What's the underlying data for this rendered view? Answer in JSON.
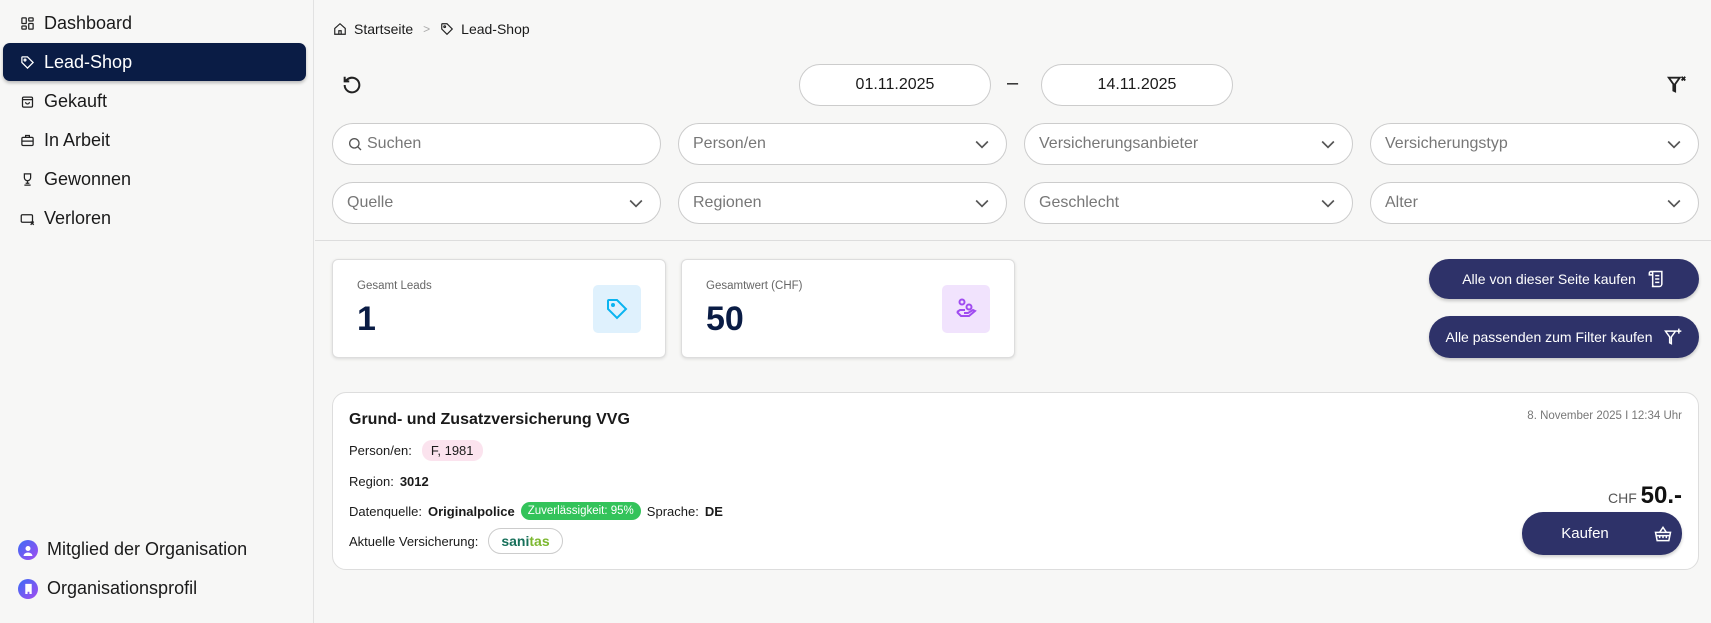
{
  "sidebar": {
    "items": [
      {
        "label": "Dashboard",
        "icon": "dashboard-icon",
        "active": false
      },
      {
        "label": "Lead-Shop",
        "icon": "tag-icon",
        "active": true
      },
      {
        "label": "Gekauft",
        "icon": "shopping-bag-icon",
        "active": false
      },
      {
        "label": "In Arbeit",
        "icon": "briefcase-icon",
        "active": false
      },
      {
        "label": "Gewonnen",
        "icon": "trophy-icon",
        "active": false
      },
      {
        "label": "Verloren",
        "icon": "ticket-x-icon",
        "active": false
      }
    ],
    "bottom": [
      {
        "label": "Mitglied der Organisation",
        "icon": "user-icon"
      },
      {
        "label": "Organisationsprofil",
        "icon": "building-icon"
      }
    ]
  },
  "breadcrumb": {
    "home": "Startseite",
    "current": "Lead-Shop"
  },
  "date_range": {
    "from": "01.11.2025",
    "separator": "–",
    "to": "14.11.2025"
  },
  "filters": {
    "search_placeholder": "Suchen",
    "selects": [
      "Person/en",
      "Versicherungsanbieter",
      "Versicherungstyp",
      "Quelle",
      "Regionen",
      "Geschlecht",
      "Alter"
    ]
  },
  "stats": [
    {
      "label": "Gesamt Leads",
      "value": "1",
      "icon": "tag-icon",
      "color": "#0ab4f0",
      "bg": "#dff1fd"
    },
    {
      "label": "Gesamtwert (CHF)",
      "value": "50",
      "icon": "hand-coins-icon",
      "color": "#a04cf0",
      "bg": "#f1e3fd"
    }
  ],
  "actions": {
    "buy_page": "Alle von dieser Seite kaufen",
    "buy_filter": "Alle passenden zum Filter kaufen"
  },
  "lead": {
    "title": "Grund- und Zusatzversicherung VVG",
    "date": "8. November 2025 I 12:34 Uhr",
    "persons_label": "Person/en:",
    "persons": "F, 1981",
    "region_label": "Region:",
    "region": "3012",
    "source_label": "Datenquelle:",
    "source": "Originalpolice",
    "reliability": "Zuverlässigkeit: 95%",
    "language_label": "Sprache:",
    "language": "DE",
    "insurance_label": "Aktuelle Versicherung:",
    "insurer_logo_a": "sani",
    "insurer_logo_b": "tas",
    "currency": "CHF",
    "price": "50.-",
    "buy": "Kaufen"
  },
  "colors": {
    "primary": "#2e3269",
    "sidebar_active": "#0a1c45",
    "green": "#33c35a"
  }
}
